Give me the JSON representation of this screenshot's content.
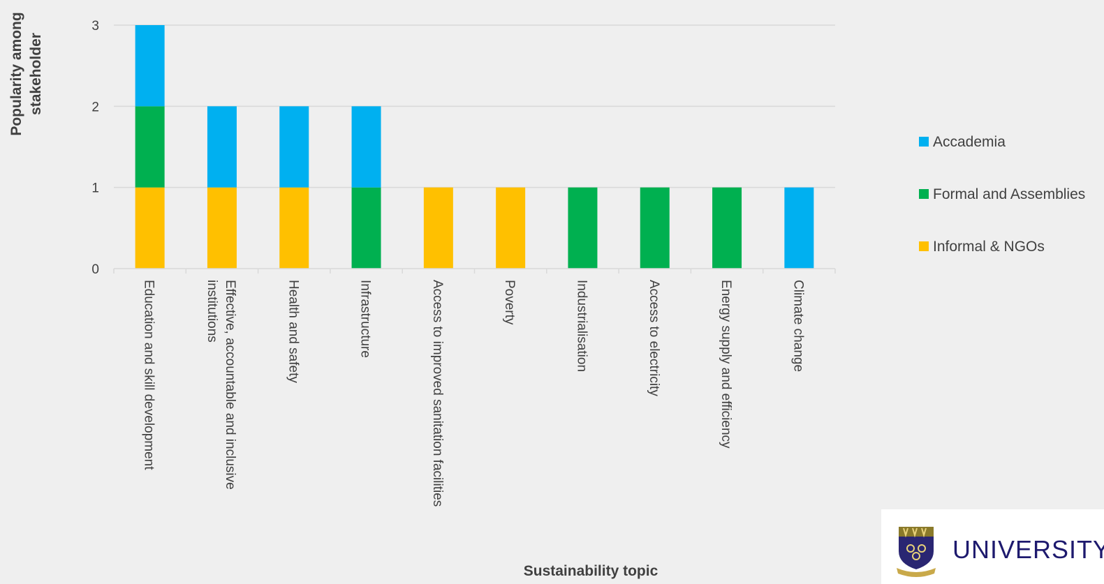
{
  "chart_data": {
    "type": "bar",
    "stacked": true,
    "xlabel": "Sustainability topic",
    "ylabel_lines": [
      "Popularity among",
      "stakeholder"
    ],
    "ylim": [
      0,
      3
    ],
    "yticks": [
      "0",
      "1",
      "2",
      "3"
    ],
    "grid": true,
    "legend_position": "right",
    "categories": [
      [
        "Education and skill development"
      ],
      [
        "Effective, accountable and inclusive",
        "institutions"
      ],
      [
        "Health and safety"
      ],
      [
        "Infrastructure"
      ],
      [
        "Access to improved sanitation facilities"
      ],
      [
        "Poverty"
      ],
      [
        "Industrialisation"
      ],
      [
        "Access to electricity"
      ],
      [
        "Energy supply and efficiency"
      ],
      [
        "Climate change"
      ]
    ],
    "series": [
      {
        "name": "Informal & NGOs",
        "color": "#ffc000",
        "values": [
          1,
          1,
          1,
          0,
          1,
          1,
          0,
          0,
          0,
          0
        ]
      },
      {
        "name": "Formal and Assemblies",
        "color": "#00b050",
        "values": [
          1,
          0,
          0,
          1,
          0,
          0,
          1,
          1,
          1,
          0
        ]
      },
      {
        "name": "Accademia",
        "color": "#00b0f0",
        "values": [
          1,
          1,
          1,
          1,
          0,
          0,
          0,
          0,
          0,
          1
        ]
      }
    ],
    "legend_order": [
      "Accademia",
      "Formal and Assemblies",
      "Informal & NGOs"
    ]
  },
  "logo": {
    "text": "UNIVERSITY O",
    "color": "#1e1a6e"
  }
}
